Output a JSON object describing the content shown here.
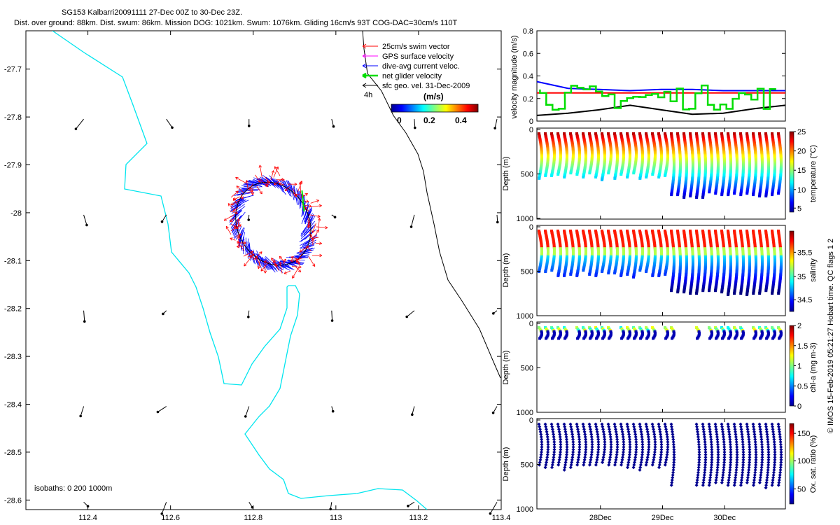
{
  "title_line1": "SG153 Kalbarri20091111 27-Dec 00Z to 30-Dec 23Z.",
  "title_line2": "Dist. over ground: 88km. Dist. swum: 86km. Mission DOG: 1021km. Swum: 1076km. Gliding 16cm/s 93T COG-DAC=30cm/s 110T",
  "side_note": "© IMOS 15-Feb-2019 05:21:27 Hobart time. QC flags 1  2",
  "map": {
    "x_ticks": [
      "112.4",
      "112.6",
      "112.8",
      "113",
      "113.2",
      "113.4"
    ],
    "y_ticks": [
      "-27.7",
      "-27.8",
      "-27.9",
      "-28",
      "-28.1",
      "-28.2",
      "-28.3",
      "-28.4",
      "-28.5",
      "-28.6"
    ],
    "legend": [
      {
        "label": "25cm/s swim vector",
        "color": "#ff0000"
      },
      {
        "label": "GPS surface velocity",
        "color": "#ff00ff"
      },
      {
        "label": "dive-avg current veloc.",
        "color": "#0000ff"
      },
      {
        "label": "net glider velocity",
        "color": "#00dd00"
      },
      {
        "label": "sfc geo. vel. 31-Dec-2009",
        "color": "#000000"
      }
    ],
    "label_4h": "4h",
    "colorbar_title": "(m/s)",
    "colorbar_ticks": [
      "0",
      "0.2",
      "0.4"
    ],
    "isobaths": "isobaths: 0   200  1000m"
  },
  "panels": {
    "velocity": {
      "ylabel": "velocity magnitude (m/s)",
      "yticks": [
        "0",
        "0.2",
        "0.4",
        "0.6",
        "0.8"
      ]
    },
    "temperature": {
      "ylabel": "Depth (m)",
      "cblabel": "temperature (°C)",
      "yticks": [
        "0",
        "500",
        "1000"
      ],
      "cbticks": [
        "5",
        "10",
        "15",
        "20",
        "25"
      ]
    },
    "salinity": {
      "ylabel": "Depth (m)",
      "cblabel": "salinity",
      "yticks": [
        "0",
        "500",
        "1000"
      ],
      "cbticks": [
        "34.5",
        "35",
        "35.5"
      ]
    },
    "chla": {
      "ylabel": "Depth (m)",
      "cblabel": "chl-a (mg m-3)",
      "yticks": [
        "0",
        "500",
        "1000"
      ],
      "cbticks": [
        "0",
        "0.5",
        "1",
        "1.5",
        "2"
      ]
    },
    "oxygen": {
      "ylabel": "Depth (m)",
      "cblabel": "Ox. sat. ratio (%)",
      "yticks": [
        "0",
        "500",
        "1000"
      ],
      "cbticks": [
        "50",
        "100",
        "150"
      ]
    },
    "x_ticks": [
      "28Dec",
      "29Dec",
      "30Dec"
    ]
  },
  "chart_data": [
    {
      "type": "scatter",
      "title": "SG153 Kalbarri20091111 27-Dec 00Z to 30-Dec 23Z.",
      "xlim": [
        112.25,
        113.4
      ],
      "ylim": [
        -28.62,
        -27.62
      ],
      "xticks": [
        112.4,
        112.6,
        112.8,
        113,
        113.2,
        113.4
      ],
      "yticks": [
        -27.7,
        -27.8,
        -27.9,
        -28,
        -28.1,
        -28.2,
        -28.3,
        -28.4,
        -28.5,
        -28.6
      ],
      "track_loop_center": [
        112.845,
        -28.02
      ],
      "legend_placement": "top-right",
      "series": [
        {
          "name": "25cm/s swim vector"
        },
        {
          "name": "GPS surface velocity"
        },
        {
          "name": "dive-avg current veloc."
        },
        {
          "name": "net glider velocity"
        },
        {
          "name": "sfc geo. vel. 31-Dec-2009"
        }
      ]
    },
    {
      "type": "line",
      "ylabel": "velocity magnitude (m/s)",
      "ylim": [
        0,
        0.8
      ],
      "x": [
        27.0,
        27.5,
        28.0,
        28.5,
        29.0,
        29.5,
        30.0,
        30.5,
        31.0
      ],
      "series": [
        {
          "name": "blue",
          "values": [
            0.35,
            0.29,
            0.28,
            0.27,
            0.28,
            0.28,
            0.27,
            0.27,
            0.27
          ]
        },
        {
          "name": "red",
          "values": [
            0.25,
            0.25,
            0.25,
            0.25,
            0.25,
            0.25,
            0.25,
            0.25,
            0.25
          ]
        },
        {
          "name": "black",
          "values": [
            0.05,
            0.07,
            0.1,
            0.14,
            0.1,
            0.06,
            0.07,
            0.11,
            0.14
          ]
        }
      ]
    },
    {
      "type": "scatter",
      "ylabel": "Depth (m)",
      "ylim": [
        1000,
        0
      ],
      "color_label": "temperature (°C)",
      "color_range": [
        4,
        25
      ],
      "profiles": 39,
      "max_depth": 750
    },
    {
      "type": "scatter",
      "ylabel": "Depth (m)",
      "ylim": [
        1000,
        0
      ],
      "color_label": "salinity",
      "color_range": [
        34.3,
        36
      ],
      "profiles": 39,
      "max_depth": 750
    },
    {
      "type": "scatter",
      "ylabel": "Depth (m)",
      "ylim": [
        1000,
        0
      ],
      "color_label": "chl-a (mg m-3)",
      "color_range": [
        0,
        2
      ],
      "max_depth": 150
    },
    {
      "type": "scatter",
      "ylabel": "Depth (m)",
      "ylim": [
        1000,
        0
      ],
      "color_label": "Ox. sat. ratio (%)",
      "color_range": [
        25,
        170
      ],
      "max_depth": 750
    }
  ]
}
